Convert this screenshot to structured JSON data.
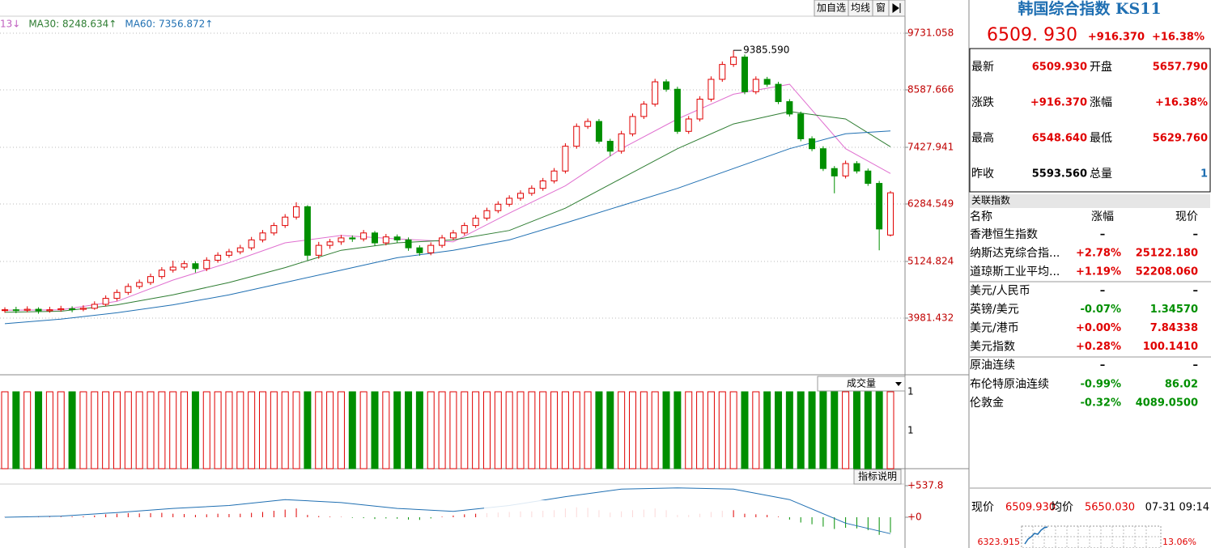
{
  "toolbar": {
    "buttons": [
      "加自选",
      "均线",
      "窗"
    ]
  },
  "legend": [
    {
      "text": "13↓",
      "color": "#c060c0"
    },
    {
      "text": "MA30: 8248.634↑",
      "color": "#2e7d32"
    },
    {
      "text": "MA60: 7356.872↑",
      "color": "#1f6fb2"
    }
  ],
  "price_chart": {
    "ylim": [
      2838.1,
      10400.8
    ],
    "yticks": [
      9731.058,
      8587.666,
      7427.941,
      6284.549,
      5124.824,
      3981.432
    ],
    "up_color": "#e00000",
    "down_color": "#008f00",
    "max_label": "9385.590",
    "candles": [
      [
        4140,
        4200,
        4090,
        4150
      ],
      [
        4150,
        4210,
        4080,
        4140
      ],
      [
        4140,
        4220,
        4100,
        4160
      ],
      [
        4160,
        4200,
        4070,
        4130
      ],
      [
        4130,
        4210,
        4090,
        4150
      ],
      [
        4150,
        4230,
        4110,
        4170
      ],
      [
        4170,
        4220,
        4100,
        4160
      ],
      [
        4160,
        4240,
        4120,
        4180
      ],
      [
        4180,
        4320,
        4150,
        4260
      ],
      [
        4260,
        4440,
        4220,
        4380
      ],
      [
        4380,
        4560,
        4330,
        4500
      ],
      [
        4500,
        4680,
        4450,
        4620
      ],
      [
        4620,
        4760,
        4570,
        4700
      ],
      [
        4700,
        4880,
        4650,
        4820
      ],
      [
        4820,
        5010,
        4770,
        4950
      ],
      [
        4950,
        5140,
        4900,
        5010
      ],
      [
        5010,
        5140,
        4960,
        5080
      ],
      [
        5080,
        5130,
        4900,
        4980
      ],
      [
        4980,
        5210,
        4930,
        5150
      ],
      [
        5150,
        5310,
        5100,
        5250
      ],
      [
        5250,
        5380,
        5200,
        5320
      ],
      [
        5320,
        5460,
        5270,
        5400
      ],
      [
        5400,
        5620,
        5350,
        5560
      ],
      [
        5560,
        5760,
        5510,
        5700
      ],
      [
        5700,
        5910,
        5650,
        5850
      ],
      [
        5850,
        6080,
        5800,
        6020
      ],
      [
        6020,
        6320,
        5970,
        6230
      ],
      [
        6230,
        6260,
        5150,
        5250
      ],
      [
        5250,
        5520,
        5180,
        5450
      ],
      [
        5450,
        5580,
        5380,
        5520
      ],
      [
        5520,
        5660,
        5460,
        5600
      ],
      [
        5600,
        5650,
        5520,
        5580
      ],
      [
        5580,
        5760,
        5530,
        5700
      ],
      [
        5700,
        5740,
        5440,
        5500
      ],
      [
        5500,
        5680,
        5450,
        5620
      ],
      [
        5620,
        5670,
        5500,
        5560
      ],
      [
        5560,
        5610,
        5340,
        5400
      ],
      [
        5400,
        5450,
        5240,
        5300
      ],
      [
        5300,
        5510,
        5250,
        5450
      ],
      [
        5450,
        5660,
        5400,
        5600
      ],
      [
        5600,
        5760,
        5550,
        5700
      ],
      [
        5700,
        5910,
        5650,
        5850
      ],
      [
        5850,
        6060,
        5800,
        6000
      ],
      [
        6000,
        6210,
        5950,
        6150
      ],
      [
        6150,
        6340,
        6100,
        6280
      ],
      [
        6280,
        6460,
        6230,
        6400
      ],
      [
        6400,
        6560,
        6350,
        6500
      ],
      [
        6500,
        6660,
        6450,
        6600
      ],
      [
        6600,
        6810,
        6550,
        6750
      ],
      [
        6750,
        7010,
        6700,
        6950
      ],
      [
        6950,
        7510,
        6900,
        7450
      ],
      [
        7450,
        7910,
        7400,
        7850
      ],
      [
        7850,
        8010,
        7800,
        7950
      ],
      [
        7950,
        8000,
        7500,
        7550
      ],
      [
        7550,
        7600,
        7250,
        7350
      ],
      [
        7350,
        7760,
        7300,
        7700
      ],
      [
        7700,
        8110,
        7650,
        8050
      ],
      [
        8050,
        8360,
        8000,
        8300
      ],
      [
        8300,
        8810,
        8250,
        8750
      ],
      [
        8750,
        8800,
        8550,
        8600
      ],
      [
        8600,
        8650,
        7700,
        7750
      ],
      [
        7750,
        8060,
        7700,
        8000
      ],
      [
        8000,
        8460,
        7950,
        8400
      ],
      [
        8400,
        8860,
        8350,
        8800
      ],
      [
        8800,
        9160,
        8750,
        9100
      ],
      [
        9100,
        9385.59,
        9050,
        9250
      ],
      [
        9250,
        9300,
        8500,
        8550
      ],
      [
        8550,
        8860,
        8500,
        8800
      ],
      [
        8800,
        8850,
        8650,
        8700
      ],
      [
        8700,
        8750,
        8300,
        8350
      ],
      [
        8350,
        8400,
        8050,
        8100
      ],
      [
        8100,
        8150,
        7550,
        7600
      ],
      [
        7600,
        7650,
        7350,
        7400
      ],
      [
        7400,
        7450,
        6950,
        7000
      ],
      [
        7000,
        7050,
        6500,
        6850
      ],
      [
        6850,
        7160,
        6800,
        7100
      ],
      [
        7100,
        7150,
        6900,
        6950
      ],
      [
        6950,
        7000,
        6650,
        6700
      ],
      [
        6700,
        6750,
        5350,
        5780
      ],
      [
        5657.79,
        6548.64,
        5629.76,
        6509.93
      ]
    ],
    "ma_index": [
      0,
      5,
      10,
      15,
      20,
      25,
      30,
      35,
      40,
      45,
      50,
      55,
      60,
      65,
      70,
      75,
      79
    ],
    "ma_lines": [
      {
        "color": "#e070d0",
        "values": [
          4140,
          4150,
          4320,
          4750,
          5100,
          5500,
          5650,
          5580,
          5520,
          6100,
          6650,
          7400,
          8000,
          8500,
          8700,
          7400,
          6900
        ]
      },
      {
        "color": "#2e7d32",
        "values": [
          4100,
          4120,
          4250,
          4450,
          4700,
          5000,
          5350,
          5500,
          5560,
          5750,
          6200,
          6800,
          7400,
          7900,
          8150,
          8000,
          7440
        ]
      },
      {
        "color": "#1f6fb2",
        "values": [
          3868,
          3960,
          4090,
          4250,
          4450,
          4700,
          4950,
          5200,
          5350,
          5560,
          5900,
          6250,
          6600,
          7000,
          7400,
          7700,
          7760
        ]
      }
    ]
  },
  "volume": {
    "title": "成交量",
    "tick_labels": [
      1,
      1
    ],
    "values": [
      1,
      1,
      1,
      1,
      1,
      1,
      1,
      1,
      1,
      1,
      1,
      1,
      1,
      1,
      1,
      1,
      1,
      1,
      1,
      1,
      1,
      1,
      1,
      1,
      1,
      1,
      1,
      1,
      1,
      1,
      1,
      1,
      1,
      1,
      1,
      1,
      1,
      1,
      1,
      1,
      1,
      1,
      1,
      1,
      1,
      1,
      1,
      1,
      1,
      1,
      1,
      1,
      1,
      1,
      1,
      1,
      1,
      1,
      1,
      1,
      1,
      1,
      1,
      1,
      1,
      1,
      1,
      1,
      1,
      1,
      1,
      1,
      1,
      1,
      1,
      1,
      1,
      1,
      1,
      1
    ]
  },
  "macd": {
    "button": "指标说明",
    "ylim": [
      -524,
      565.4
    ],
    "yticks": [
      {
        "value": 537.8,
        "label": "+537.8"
      },
      {
        "value": 0,
        "label": "+0"
      }
    ],
    "hist": [
      5,
      8,
      10,
      6,
      8,
      10,
      12,
      15,
      30,
      50,
      60,
      70,
      65,
      70,
      75,
      60,
      55,
      40,
      50,
      60,
      55,
      60,
      75,
      90,
      110,
      130,
      150,
      40,
      20,
      10,
      5,
      -10,
      -15,
      -30,
      -20,
      -25,
      -40,
      -45,
      -20,
      10,
      30,
      50,
      60,
      70,
      80,
      90,
      100,
      100,
      110,
      120,
      150,
      170,
      160,
      120,
      80,
      100,
      120,
      130,
      150,
      120,
      40,
      40,
      60,
      90,
      110,
      120,
      60,
      50,
      40,
      10,
      -40,
      -90,
      -120,
      -160,
      -200,
      -180,
      -190,
      -220,
      -300,
      -260
    ],
    "dif": [
      0,
      20,
      80,
      150,
      200,
      300,
      250,
      150,
      100,
      200,
      350,
      480,
      500,
      480,
      300,
      -100,
      -280
    ]
  },
  "quote": {
    "title": "韩国综合指数 KS11",
    "price": "6509. 930",
    "change": "+916.370",
    "pct": "+16.38%",
    "rows": [
      [
        "最新",
        "6509.930",
        "开盘",
        "5657.790"
      ],
      [
        "涨跌",
        "+916.370",
        "涨幅",
        "+16.38%"
      ],
      [
        "最高",
        "6548.640",
        "最低",
        "5629.760"
      ],
      [
        "昨收",
        "5593.560",
        "总量",
        "1"
      ]
    ]
  },
  "related": {
    "title": "关联指数",
    "header": [
      "名称",
      "涨幅",
      "现价"
    ],
    "rows": [
      {
        "name": "香港恒生指数",
        "change": "–",
        "price": "–",
        "color": "#000000"
      },
      {
        "name": "纳斯达克综合指...",
        "change": "+2.78%",
        "price": "25122.180",
        "color": "#e00000"
      },
      {
        "name": "道琼斯工业平均...",
        "change": "+1.19%",
        "price": "52208.060",
        "color": "#e00000"
      },
      {
        "name": "美元/人民币",
        "change": "–",
        "price": "–",
        "color": "#000000"
      },
      {
        "name": "英镑/美元",
        "change": "-0.07%",
        "price": "1.34570",
        "color": "#008f00"
      },
      {
        "name": "美元/港币",
        "change": "+0.00%",
        "price": "7.84338",
        "color": "#e00000"
      },
      {
        "name": "美元指数",
        "change": "+0.28%",
        "price": "100.1410",
        "color": "#e00000"
      },
      {
        "name": "原油连续",
        "change": "–",
        "price": "–",
        "color": "#000000"
      },
      {
        "name": "布伦特原油连续",
        "change": "-0.99%",
        "price": "86.02",
        "color": "#008f00"
      },
      {
        "name": "伦敦金",
        "change": "-0.32%",
        "price": "4089.0500",
        "color": "#008f00"
      }
    ]
  },
  "footer": {
    "price_label": "现价",
    "price": "6509.930",
    "avg_label": "均价",
    "avg": "5650.030",
    "time": "07-31 09:14",
    "mini_price": "6323.915",
    "mini_pct": "13.06%"
  }
}
